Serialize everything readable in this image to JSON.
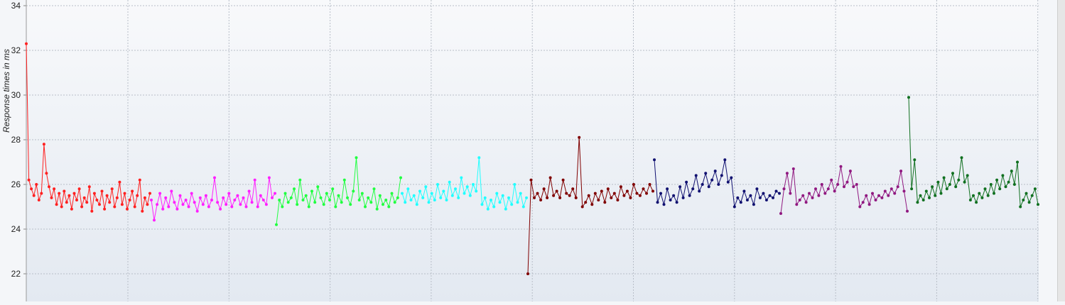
{
  "chart_data": {
    "type": "line",
    "ylabel": "Response times in ms",
    "ylim": [
      21,
      34
    ],
    "yticks": [
      "34",
      "32",
      "30",
      "28",
      "26",
      "24",
      "22"
    ],
    "grid": true,
    "series": [
      {
        "color": "#ff2020",
        "values": [
          32.3,
          26.2,
          25.8,
          25.5,
          26.0,
          25.3,
          25.6,
          27.8,
          26.5,
          25.9,
          25.4,
          25.8,
          25.1,
          25.6,
          25.0,
          25.7,
          25.2,
          25.5,
          24.9,
          25.6,
          25.3,
          25.8,
          25.0,
          25.4,
          25.2,
          25.9,
          24.8,
          25.6,
          25.3,
          25.1,
          25.7,
          24.9,
          25.5,
          25.2,
          25.8,
          25.0,
          25.4,
          26.1,
          25.1,
          25.6,
          24.9,
          25.3,
          25.7,
          25.0,
          25.5,
          26.2,
          24.8,
          25.4,
          25.1,
          25.6
        ]
      },
      {
        "color": "#ff20ff",
        "values": [
          25.3,
          24.4,
          25.1,
          25.6,
          24.9,
          25.4,
          25.0,
          25.7,
          25.2,
          24.9,
          25.5,
          25.1,
          25.3,
          25.0,
          25.6,
          25.2,
          24.8,
          25.4,
          25.1,
          25.5,
          25.0,
          25.3,
          26.3,
          25.2,
          24.9,
          25.4,
          25.1,
          25.6,
          25.0,
          25.3,
          25.5,
          25.1,
          25.4,
          25.0,
          25.7,
          25.2,
          26.2,
          25.0,
          25.5,
          25.3,
          25.1,
          26.3,
          25.4,
          25.6
        ]
      },
      {
        "color": "#20ff40",
        "values": [
          24.2,
          25.3,
          25.0,
          25.6,
          25.2,
          25.4,
          25.8,
          25.1,
          26.2,
          25.3,
          25.5,
          25.0,
          25.7,
          25.2,
          25.9,
          25.4,
          25.1,
          25.6,
          25.3,
          25.8,
          25.0,
          25.5,
          25.2,
          26.2,
          25.4,
          25.1,
          25.7,
          27.2,
          25.3,
          25.6,
          25.0,
          25.4,
          25.2,
          25.8,
          24.9,
          25.5,
          25.1,
          25.3,
          25.0,
          25.6,
          25.2,
          25.4,
          26.3
        ]
      },
      {
        "color": "#20ffff",
        "values": [
          25.6,
          25.2,
          25.8,
          25.3,
          25.5,
          25.1,
          25.7,
          25.4,
          25.9,
          25.2,
          25.6,
          25.3,
          26.0,
          25.4,
          25.7,
          25.3,
          26.1,
          25.5,
          25.8,
          25.4,
          26.3,
          25.6,
          25.9,
          25.5,
          26.0,
          25.7,
          27.2,
          25.1,
          25.4,
          24.9,
          25.3,
          25.0,
          25.6,
          25.2,
          25.5,
          24.9,
          25.4,
          25.1,
          26.0,
          25.2,
          25.6,
          25.0,
          25.4
        ]
      },
      {
        "color": "#800000",
        "values": [
          22.0,
          26.2,
          25.4,
          25.6,
          25.3,
          25.8,
          25.4,
          26.3,
          25.5,
          25.7,
          25.4,
          26.2,
          25.6,
          25.5,
          25.8,
          25.4,
          28.1,
          25.0,
          25.2,
          25.5,
          25.1,
          25.6,
          25.3,
          25.7,
          25.2,
          25.8,
          25.4,
          25.6,
          25.3,
          25.9,
          25.5,
          25.7,
          25.4,
          26.0,
          25.6,
          25.5,
          25.8,
          25.6,
          26.0,
          25.7
        ]
      },
      {
        "color": "#101070",
        "values": [
          27.1,
          25.2,
          25.6,
          25.1,
          25.8,
          25.3,
          25.5,
          25.2,
          25.9,
          25.4,
          26.1,
          25.5,
          25.8,
          26.4,
          25.7,
          26.0,
          26.5,
          25.9,
          26.2,
          26.6,
          26.0,
          26.4,
          27.1,
          26.1,
          26.3,
          25.0,
          25.4,
          25.2,
          25.7,
          25.3,
          25.5,
          25.1,
          25.8,
          25.4,
          25.6,
          25.3,
          25.5,
          25.4,
          25.7,
          25.6
        ]
      },
      {
        "color": "#901880",
        "values": [
          24.7,
          25.8,
          26.5,
          25.6,
          26.7,
          25.1,
          25.3,
          25.5,
          25.2,
          25.6,
          25.4,
          25.8,
          25.5,
          26.0,
          25.6,
          25.8,
          26.2,
          25.7,
          26.0,
          26.8,
          25.9,
          26.1,
          26.6,
          25.9,
          26.0,
          25.0,
          25.2,
          25.5,
          25.1,
          25.6,
          25.3,
          25.5,
          25.4,
          25.7,
          25.5,
          25.8,
          25.6,
          25.9,
          26.6,
          25.7,
          24.8
        ]
      },
      {
        "color": "#107020",
        "values": [
          29.9,
          25.8,
          27.1,
          25.2,
          25.5,
          25.3,
          25.7,
          25.4,
          25.9,
          25.5,
          26.1,
          25.6,
          26.3,
          25.8,
          26.0,
          26.5,
          25.9,
          26.2,
          27.2,
          26.1,
          26.4,
          25.3,
          25.5,
          25.2,
          25.6,
          25.4,
          25.8,
          25.5,
          26.0,
          25.6,
          26.2,
          25.8,
          26.4,
          25.9,
          26.1,
          26.6,
          26.0,
          27.0,
          25.0,
          25.3,
          25.6,
          25.2,
          25.5,
          25.8,
          25.1
        ]
      }
    ]
  }
}
